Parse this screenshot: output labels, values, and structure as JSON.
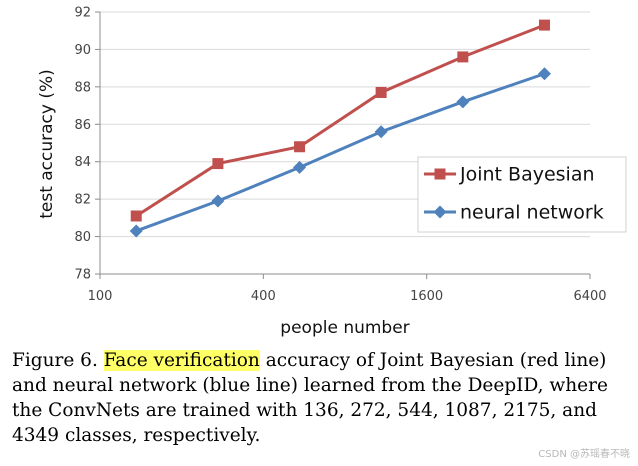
{
  "chart_data": {
    "type": "line",
    "xscale": "log2",
    "xlabel": "people number",
    "ylabel": "test accuracy (%)",
    "xlim": [
      100,
      6400
    ],
    "ylim": [
      78,
      92
    ],
    "xticks": [
      100,
      400,
      1600,
      6400
    ],
    "yticks": [
      78,
      80,
      82,
      84,
      86,
      88,
      90,
      92
    ],
    "grid": "horizontal",
    "legend_position": "right",
    "x": [
      136,
      272,
      544,
      1087,
      2175,
      4349
    ],
    "series": [
      {
        "name": "Joint Bayesian",
        "color": "#c0504d",
        "marker": "square",
        "values": [
          81.1,
          83.9,
          84.8,
          87.7,
          89.6,
          91.3
        ]
      },
      {
        "name": "neural network",
        "color": "#4f81bd",
        "marker": "diamond",
        "values": [
          80.3,
          81.9,
          83.7,
          85.6,
          87.2,
          88.7
        ]
      }
    ]
  },
  "caption": {
    "prefix": "Figure 6. ",
    "highlight": "Face verification",
    "rest": " accuracy of Joint Bayesian (red line) and neural network (blue line) learned from the DeepID, where the ConvNets are trained with 136, 272, 544, 1087, 2175, and 4349 classes, respectively."
  },
  "watermark": "CSDN @苏瑶春不晓"
}
